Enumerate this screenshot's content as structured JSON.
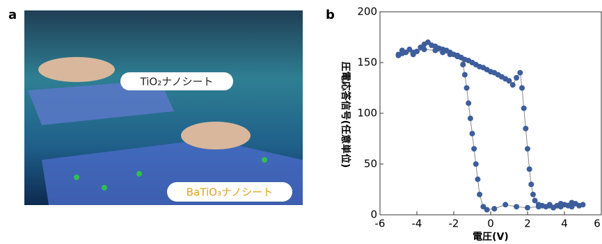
{
  "panel_a": {
    "label": "a",
    "tio2_label": "TiO₂ナノシート",
    "batio3_label": "BaTiO₃ナノシート"
  },
  "chart_data": {
    "type": "scatter",
    "panel_label": "b",
    "x_label": "電圧(V)",
    "y_label": "圧電応答信号(任意単位)",
    "xlim": [
      -6,
      6
    ],
    "ylim": [
      0,
      200
    ],
    "xticks": [
      -6,
      -4,
      -2,
      0,
      2,
      4,
      6
    ],
    "yticks": [
      0,
      50,
      100,
      150,
      200
    ],
    "marker_color": "#3d5d9c",
    "line_color": "#888888",
    "x": [
      -5.0,
      -4.8,
      -4.6,
      -4.4,
      -4.2,
      -4.0,
      -3.8,
      -3.6,
      -3.4,
      -3.2,
      -3.0,
      -2.8,
      -2.6,
      -2.4,
      -2.2,
      -2.0,
      -1.8,
      -1.6,
      -1.4,
      -1.2,
      -1.0,
      -0.8,
      -0.6,
      -0.4,
      -0.2,
      0.0,
      0.2,
      0.4,
      0.6,
      0.8,
      1.0,
      1.2,
      1.4,
      1.6,
      1.7,
      1.8,
      1.9,
      2.0,
      2.1,
      2.2,
      2.3,
      2.4,
      2.6,
      2.8,
      3.0,
      3.2,
      3.4,
      3.6,
      3.8,
      4.0,
      4.2,
      4.4,
      4.6,
      4.8,
      5.0,
      4.4,
      3.8,
      3.2,
      2.6,
      2.0,
      1.4,
      0.8,
      0.2,
      -0.2,
      -0.4,
      -0.6,
      -0.7,
      -0.8,
      -0.9,
      -1.0,
      -1.1,
      -1.2,
      -1.3,
      -1.4,
      -1.5,
      -1.6,
      -1.8,
      -2.2,
      -2.6,
      -3.0,
      -3.6,
      -4.2,
      -4.8,
      -5.0
    ],
    "y": [
      158,
      162,
      160,
      163,
      158,
      161,
      165,
      168,
      170,
      167,
      166,
      164,
      163,
      162,
      160,
      158,
      157,
      155,
      153,
      152,
      150,
      148,
      146,
      145,
      143,
      141,
      140,
      138,
      136,
      134,
      132,
      128,
      135,
      140,
      125,
      105,
      85,
      65,
      45,
      30,
      20,
      14,
      10,
      9,
      8,
      10,
      7,
      9,
      8,
      10,
      9,
      8,
      11,
      9,
      10,
      12,
      11,
      9,
      8,
      7,
      8,
      10,
      6,
      5,
      8,
      20,
      35,
      50,
      65,
      80,
      95,
      110,
      125,
      138,
      148,
      155,
      156,
      158,
      160,
      162,
      163,
      160,
      159,
      157
    ]
  }
}
